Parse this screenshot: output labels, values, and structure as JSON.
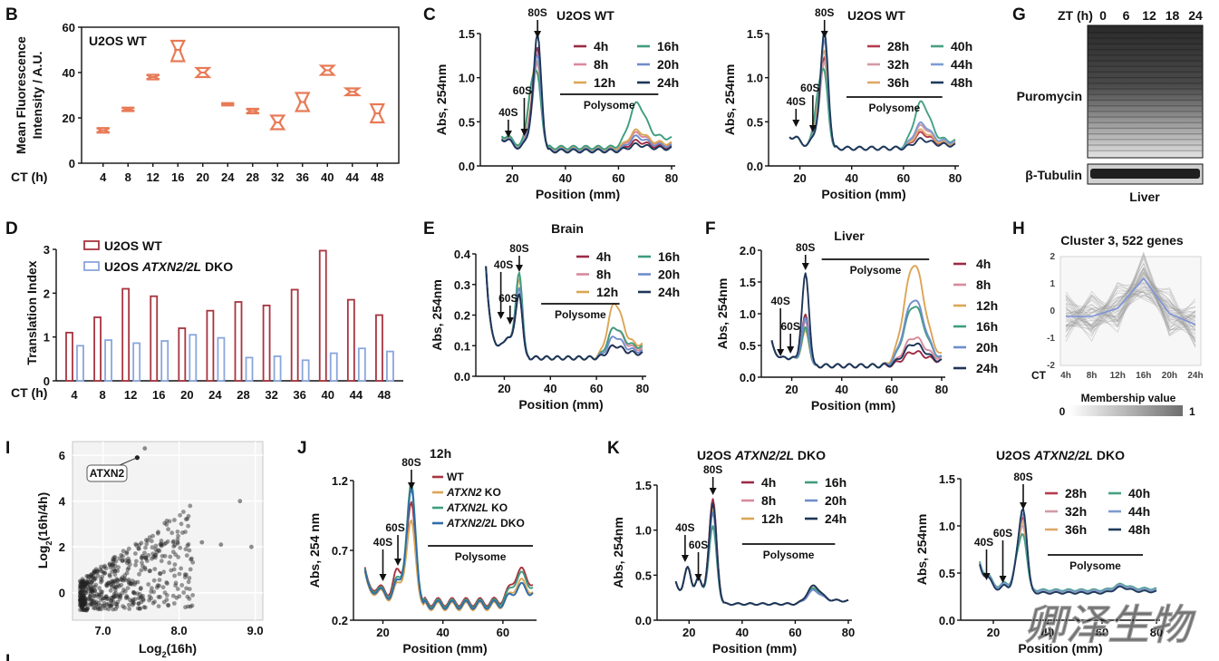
{
  "colors": {
    "wt_red": "#a8343f",
    "dko_blue": "#8aa6dc",
    "orange": "#e87a56",
    "c4h": "#9c2b46",
    "c8h": "#d88a9c",
    "c12h": "#dba555",
    "c16h": "#3f9c80",
    "c20h": "#6e8ecb",
    "c24h": "#1d3557",
    "c28h": "#b63b4e",
    "c32h": "#d39aa6",
    "c36h": "#e0a86a",
    "c40h": "#46a085",
    "c44h": "#7d9bcf",
    "c48h": "#1f3a5c"
  },
  "panel_letters": {
    "B": "B",
    "C": "C",
    "D": "D",
    "E": "E",
    "F": "F",
    "G": "G",
    "H": "H",
    "I": "I",
    "J": "J",
    "K": "K",
    "L": "L"
  },
  "panels": {
    "B": {
      "chart_data": {
        "type": "box",
        "title": "U2OS WT",
        "ylabel": "Mean Fluorescence Intensity / A.U.",
        "ylabel_lines": [
          "Mean Fluorescence",
          "Intensity / A.U."
        ],
        "xlabel": "CT (h)",
        "categories": [
          "4",
          "8",
          "12",
          "16",
          "20",
          "24",
          "28",
          "32",
          "36",
          "40",
          "44",
          "48"
        ],
        "values": [
          14.5,
          23.8,
          38,
          50,
          40,
          26,
          23,
          18,
          27,
          41,
          31.5,
          22
        ],
        "ranges": [
          [
            13.5,
            15.5
          ],
          [
            23,
            24.5
          ],
          [
            37,
            39
          ],
          [
            45,
            54
          ],
          [
            38,
            42
          ],
          [
            25.5,
            26.5
          ],
          [
            22,
            24
          ],
          [
            15,
            21
          ],
          [
            23,
            31
          ],
          [
            39,
            43
          ],
          [
            30,
            33
          ],
          [
            18,
            26
          ]
        ],
        "ylim": [
          0,
          60
        ],
        "yticks": [
          0,
          20,
          40,
          60
        ]
      }
    },
    "C1": {
      "chart_data": {
        "type": "line",
        "title": "U2OS WT",
        "xlabel": "Position (mm)",
        "ylabel": "Abs, 254nm",
        "xlim": [
          10,
          80
        ],
        "ylim": [
          0,
          1.5
        ],
        "xticks": [
          20,
          40,
          60,
          80
        ],
        "yticks": [
          0.0,
          0.5,
          1.0,
          1.5
        ],
        "series": [
          {
            "name": "4h",
            "color": "#9c2b46"
          },
          {
            "name": "8h",
            "color": "#d88a9c"
          },
          {
            "name": "12h",
            "color": "#dba555"
          },
          {
            "name": "16h",
            "color": "#3f9c80"
          },
          {
            "name": "20h",
            "color": "#6e8ecb"
          },
          {
            "name": "24h",
            "color": "#1d3557"
          }
        ],
        "annotations": [
          "80S",
          "40S",
          "60S",
          "Polysome"
        ]
      }
    },
    "C2": {
      "chart_data": {
        "type": "line",
        "title": "U2OS WT",
        "xlabel": "Position (mm)",
        "ylabel": "Abs, 254nm",
        "xlim": [
          10,
          80
        ],
        "ylim": [
          0,
          1.5
        ],
        "xticks": [
          20,
          40,
          60,
          80
        ],
        "yticks": [
          0.0,
          0.5,
          1.0,
          1.5
        ],
        "series": [
          {
            "name": "28h",
            "color": "#b63b4e"
          },
          {
            "name": "32h",
            "color": "#d39aa6"
          },
          {
            "name": "36h",
            "color": "#e0a86a"
          },
          {
            "name": "40h",
            "color": "#46a085"
          },
          {
            "name": "44h",
            "color": "#7d9bcf"
          },
          {
            "name": "48h",
            "color": "#1f3a5c"
          }
        ],
        "annotations": [
          "80S",
          "40S",
          "60S",
          "Polysome"
        ]
      }
    },
    "D": {
      "chart_data": {
        "type": "bar",
        "xlabel": "CT (h)",
        "ylabel": "Translation Index",
        "categories": [
          "4",
          "8",
          "12",
          "16",
          "20",
          "24",
          "28",
          "32",
          "36",
          "40",
          "44",
          "48"
        ],
        "series": [
          {
            "name": "U2OS WT",
            "color": "#a8343f",
            "values": [
              1.1,
              1.45,
              2.1,
              1.93,
              1.2,
              1.6,
              1.8,
              1.72,
              2.08,
              2.97,
              1.85,
              1.5
            ]
          },
          {
            "name_prefix": "U2OS ",
            "name_italic": "ATXN2/2L",
            "name_suffix": " DKO",
            "color": "#8aa6dc",
            "values": [
              0.8,
              0.93,
              0.86,
              0.91,
              1.05,
              0.98,
              0.53,
              0.56,
              0.47,
              0.63,
              0.74,
              0.67
            ]
          }
        ],
        "ylim": [
          0,
          3
        ],
        "yticks": [
          0,
          1,
          2,
          3
        ]
      }
    },
    "E": {
      "chart_data": {
        "type": "line",
        "title": "Brain",
        "xlabel": "Position (mm)",
        "ylabel": "Abs, 254nm",
        "xlim": [
          10,
          80
        ],
        "ylim": [
          0,
          0.4
        ],
        "xticks": [
          20,
          40,
          60,
          80
        ],
        "yticks": [
          0.0,
          0.1,
          0.2,
          0.3,
          0.4
        ],
        "series": [
          {
            "name": "4h",
            "color": "#9c2b46"
          },
          {
            "name": "8h",
            "color": "#d88a9c"
          },
          {
            "name": "12h",
            "color": "#dba555"
          },
          {
            "name": "16h",
            "color": "#3f9c80"
          },
          {
            "name": "20h",
            "color": "#6e8ecb"
          },
          {
            "name": "24h",
            "color": "#1d3557"
          }
        ],
        "annotations": [
          "80S",
          "40S",
          "60S",
          "Polysome"
        ]
      }
    },
    "F": {
      "chart_data": {
        "type": "line",
        "title": "Liver",
        "xlabel": "Position (mm)",
        "ylabel": "Abs, 254nm",
        "xlim": [
          10,
          80
        ],
        "ylim": [
          0,
          2.0
        ],
        "xticks": [
          20,
          40,
          60,
          80
        ],
        "yticks": [
          0.0,
          0.5,
          1.0,
          1.5,
          2.0
        ],
        "series": [
          {
            "name": "4h",
            "color": "#9c2b46"
          },
          {
            "name": "8h",
            "color": "#d88a9c"
          },
          {
            "name": "12h",
            "color": "#dba555"
          },
          {
            "name": "16h",
            "color": "#3f9c80"
          },
          {
            "name": "20h",
            "color": "#6e8ecb"
          },
          {
            "name": "24h",
            "color": "#1d3557"
          }
        ],
        "annotations": [
          "80S",
          "40S",
          "60S",
          "Polysome"
        ]
      }
    },
    "G": {
      "header": "ZT (h)",
      "lanes": [
        "0",
        "6",
        "12",
        "18",
        "24"
      ],
      "labels": [
        "Puromycin",
        "β-Tubulin"
      ],
      "caption": "Liver"
    },
    "H": {
      "chart_data": {
        "type": "line",
        "title": "Cluster 3, 522 genes",
        "x": [
          "4h",
          "8h",
          "12h",
          "16h",
          "20h",
          "24h"
        ],
        "xlabel": "CT",
        "values": [
          -0.2,
          -0.2,
          0.1,
          1.2,
          -0.1,
          -0.5
        ],
        "ylim": [
          -2,
          2
        ],
        "yticks": [
          -2,
          -1,
          0,
          1,
          2
        ],
        "colorbar_label": "Membership value",
        "colorbar_range": [
          "0",
          "1"
        ]
      }
    },
    "I": {
      "chart_data": {
        "type": "scatter",
        "xlabel_base": "Log",
        "xlabel_sub": "2",
        "xlabel_rest": "(16h)",
        "ylabel_base": "Log",
        "ylabel_sub": "2",
        "ylabel_rest": "(16h/4h)",
        "xlim": [
          6.6,
          9.1
        ],
        "ylim": [
          -1.2,
          6.6
        ],
        "xticks": [
          "7.0",
          "8.0",
          "9.0"
        ],
        "yticks": [
          "0",
          "2",
          "4",
          "6"
        ],
        "highlight": "ATXN2"
      }
    },
    "J": {
      "chart_data": {
        "type": "line",
        "title": "12h",
        "xlabel": "Position (mm)",
        "ylabel": "Abs, 254 nm",
        "xlim": [
          12,
          70
        ],
        "ylim": [
          0.2,
          1.2
        ],
        "xticks": [
          "20",
          "40",
          "60"
        ],
        "yticks": [
          "0.2",
          "0.7",
          "1.2"
        ],
        "series": [
          {
            "name": "WT",
            "italic": "",
            "color": "#a8343f"
          },
          {
            "name": " KO",
            "italic": "ATXN2",
            "color": "#dba555"
          },
          {
            "name": " KO",
            "italic": "ATXN2L",
            "color": "#3f9c80"
          },
          {
            "name": " DKO",
            "italic": "ATXN2/2L",
            "color": "#2f6da8"
          }
        ],
        "annotations": [
          "80S",
          "40S",
          "60S",
          "Polysome"
        ]
      }
    },
    "K1": {
      "chart_data": {
        "type": "line",
        "title_prefix": "U2OS ",
        "title_italic": "ATXN2/2L",
        "title_suffix": " DKO",
        "xlabel": "Position (mm)",
        "ylabel": "Abs, 254nm",
        "xlim": [
          10,
          80
        ],
        "ylim": [
          0,
          1.5
        ],
        "xticks": [
          20,
          40,
          60,
          80
        ],
        "yticks": [
          0.0,
          0.5,
          1.0,
          1.5
        ],
        "series": [
          {
            "name": "4h",
            "color": "#9c2b46"
          },
          {
            "name": "8h",
            "color": "#d88a9c"
          },
          {
            "name": "12h",
            "color": "#dba555"
          },
          {
            "name": "16h",
            "color": "#3f9c80"
          },
          {
            "name": "20h",
            "color": "#6e8ecb"
          },
          {
            "name": "24h",
            "color": "#1d3557"
          }
        ],
        "annotations": [
          "80S",
          "40S",
          "60S",
          "Polysome"
        ]
      }
    },
    "K2": {
      "chart_data": {
        "type": "line",
        "title_prefix": "U2OS ",
        "title_italic": "ATXN2/2L",
        "title_suffix": " DKO",
        "xlabel": "Position (mm)",
        "ylabel": "Abs, 254nm",
        "xlim": [
          10,
          80
        ],
        "ylim": [
          0,
          1.5
        ],
        "xticks": [
          20,
          40,
          60,
          80
        ],
        "yticks": [
          0.0,
          0.5,
          1.0,
          1.5
        ],
        "series": [
          {
            "name": "28h",
            "color": "#b63b4e"
          },
          {
            "name": "32h",
            "color": "#d39aa6"
          },
          {
            "name": "36h",
            "color": "#e0a86a"
          },
          {
            "name": "40h",
            "color": "#46a085"
          },
          {
            "name": "44h",
            "color": "#7d9bcf"
          },
          {
            "name": "48h",
            "color": "#1f3a5c"
          }
        ],
        "annotations": [
          "80S",
          "40S",
          "60S",
          "Polysome"
        ]
      }
    }
  },
  "watermark": "卿泽生物"
}
